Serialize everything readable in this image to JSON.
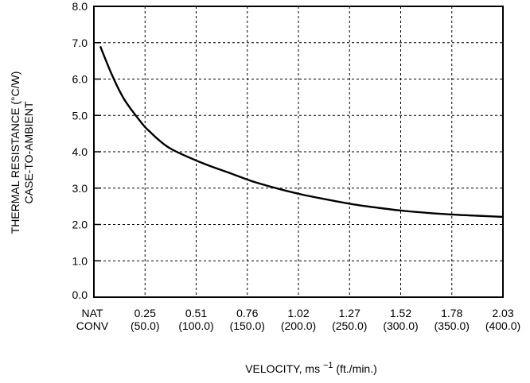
{
  "chart_data": {
    "type": "line",
    "ylabel_lines": [
      "THERMAL RESISTANCE (°C/W)",
      "CASE-TO-AMBIENT"
    ],
    "xlabel": {
      "main": "VELOCITY, ms ",
      "sup": "−1",
      "tail": " (ft./min.)"
    },
    "ylim": [
      0,
      8
    ],
    "yticks": [
      "0.0",
      "1.0",
      "2.0",
      "3.0",
      "4.0",
      "5.0",
      "6.0",
      "7.0",
      "8.0"
    ],
    "xticks": [
      {
        "top": "NAT",
        "bottom": "CONV"
      },
      {
        "top": "0.25",
        "bottom": "(50.0)"
      },
      {
        "top": "0.51",
        "bottom": "(100.0)"
      },
      {
        "top": "0.76",
        "bottom": "(150.0)"
      },
      {
        "top": "1.02",
        "bottom": "(200.0)"
      },
      {
        "top": "1.27",
        "bottom": "(250.0)"
      },
      {
        "top": "1.52",
        "bottom": "(300.0)"
      },
      {
        "top": "1.78",
        "bottom": "(350.0)"
      },
      {
        "top": "2.03",
        "bottom": "(400.0)"
      }
    ],
    "grid": true,
    "series": [
      {
        "x": [
          0.0,
          0.06,
          0.12,
          0.2,
          0.25,
          0.35,
          0.51,
          0.65,
          0.76,
          0.9,
          1.02,
          1.15,
          1.27,
          1.4,
          1.52,
          1.65,
          1.78,
          1.9,
          2.03
        ],
        "y": [
          6.9,
          6.1,
          5.45,
          4.85,
          4.55,
          4.1,
          3.7,
          3.42,
          3.2,
          2.98,
          2.82,
          2.68,
          2.56,
          2.46,
          2.38,
          2.32,
          2.27,
          2.24,
          2.21
        ]
      }
    ]
  }
}
